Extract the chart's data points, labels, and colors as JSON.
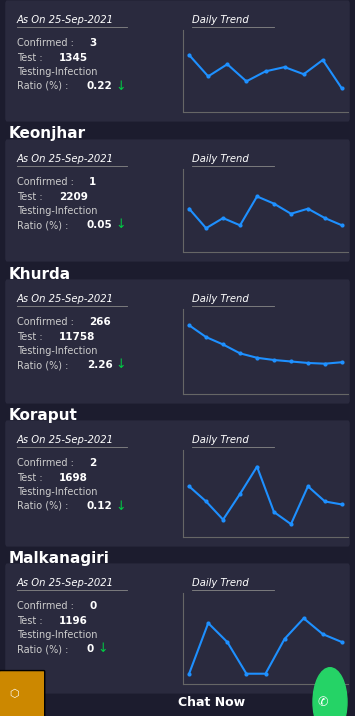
{
  "bg_color": "#1c1c2e",
  "card_bg": "#2a2a3e",
  "text_color": "#ffffff",
  "label_color": "#cccccc",
  "blue_line": "#1e90ff",
  "green_arrow": "#00cc44",
  "orange_share": "#cc8800",
  "whatsapp_green": "#25d366",
  "header_date": "As On 25-Sep-2021",
  "trend_label": "Daily Trend",
  "districts": [
    {
      "name": null,
      "confirmed": "3",
      "test": "1345",
      "ratio": "0.22",
      "trend_y": [
        0.75,
        0.45,
        0.62,
        0.38,
        0.52,
        0.58,
        0.48,
        0.68,
        0.28
      ]
    },
    {
      "name": "Keonjhar",
      "confirmed": "1",
      "test": "2209",
      "ratio": "0.05",
      "trend_y": [
        0.55,
        0.28,
        0.42,
        0.32,
        0.72,
        0.62,
        0.48,
        0.55,
        0.42,
        0.32
      ]
    },
    {
      "name": "Khurda",
      "confirmed": "266",
      "test": "11758",
      "ratio": "2.26",
      "trend_y": [
        0.88,
        0.72,
        0.62,
        0.5,
        0.44,
        0.41,
        0.39,
        0.37,
        0.36,
        0.38
      ]
    },
    {
      "name": "Koraput",
      "confirmed": "2",
      "test": "1698",
      "ratio": "0.12",
      "trend_y": [
        0.62,
        0.42,
        0.18,
        0.52,
        0.88,
        0.28,
        0.12,
        0.62,
        0.42,
        0.38
      ]
    },
    {
      "name": "Malkanagiri",
      "confirmed": "0",
      "test": "1196",
      "ratio": "0",
      "trend_y": [
        0.08,
        0.72,
        0.48,
        0.08,
        0.08,
        0.52,
        0.78,
        0.58,
        0.48
      ]
    }
  ]
}
